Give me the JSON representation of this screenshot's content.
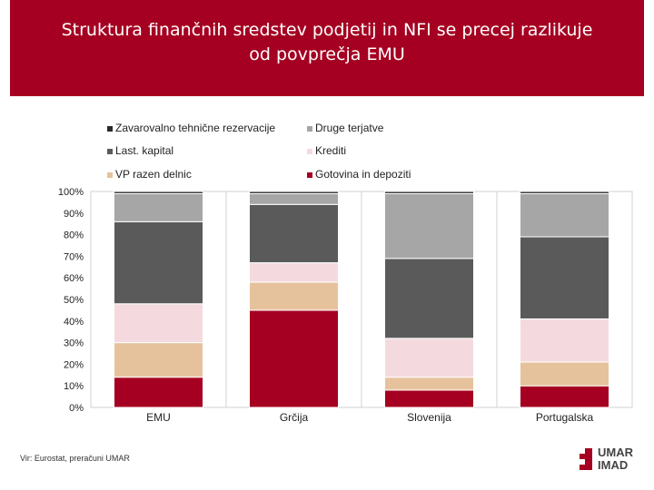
{
  "header": {
    "title_line1": "Struktura finančnih sredstev podjetij in NFI se precej razlikuje",
    "title_line2": "od povprečja EMU"
  },
  "colors": {
    "header_bg": "#a50021",
    "Gotovina in depoziti": "#a50021",
    "VP razen delnic": "#e6c29c",
    "Krediti": "#f4dade",
    "Last. kapital": "#5a5a5a",
    "Druge terjatve": "#a6a6a6",
    "Zavarovalno tehnične rezervacije": "#2a2a2a"
  },
  "chart_data": {
    "type": "bar",
    "stacked": true,
    "categories": [
      "EMU",
      "Grčija",
      "Slovenija",
      "Portugalska"
    ],
    "series": [
      {
        "name": "Gotovina in depoziti",
        "values": [
          14,
          45,
          8,
          10
        ]
      },
      {
        "name": "VP razen delnic",
        "values": [
          16,
          13,
          6,
          11
        ]
      },
      {
        "name": "Krediti",
        "values": [
          18,
          9,
          18,
          20
        ]
      },
      {
        "name": "Last. kapital",
        "values": [
          38,
          27,
          37,
          38
        ]
      },
      {
        "name": "Druge terjatve",
        "values": [
          13,
          5,
          30,
          20
        ]
      },
      {
        "name": "Zavarovalno tehnične rezervacije",
        "values": [
          1,
          1,
          1,
          1
        ]
      }
    ],
    "legend_order": [
      "Zavarovalno tehnične rezervacije",
      "Druge terjatve",
      "Last. kapital",
      "Krediti",
      "VP razen delnic",
      "Gotovina in depoziti"
    ],
    "yticks": [
      "0%",
      "10%",
      "20%",
      "30%",
      "40%",
      "50%",
      "60%",
      "70%",
      "80%",
      "90%",
      "100%"
    ],
    "ylim": [
      0,
      100
    ],
    "legend_position": "top"
  },
  "source": "Vir: Eurostat, preračuni UMAR",
  "logo": {
    "line1": "UMAR",
    "line2": "IMAD"
  }
}
